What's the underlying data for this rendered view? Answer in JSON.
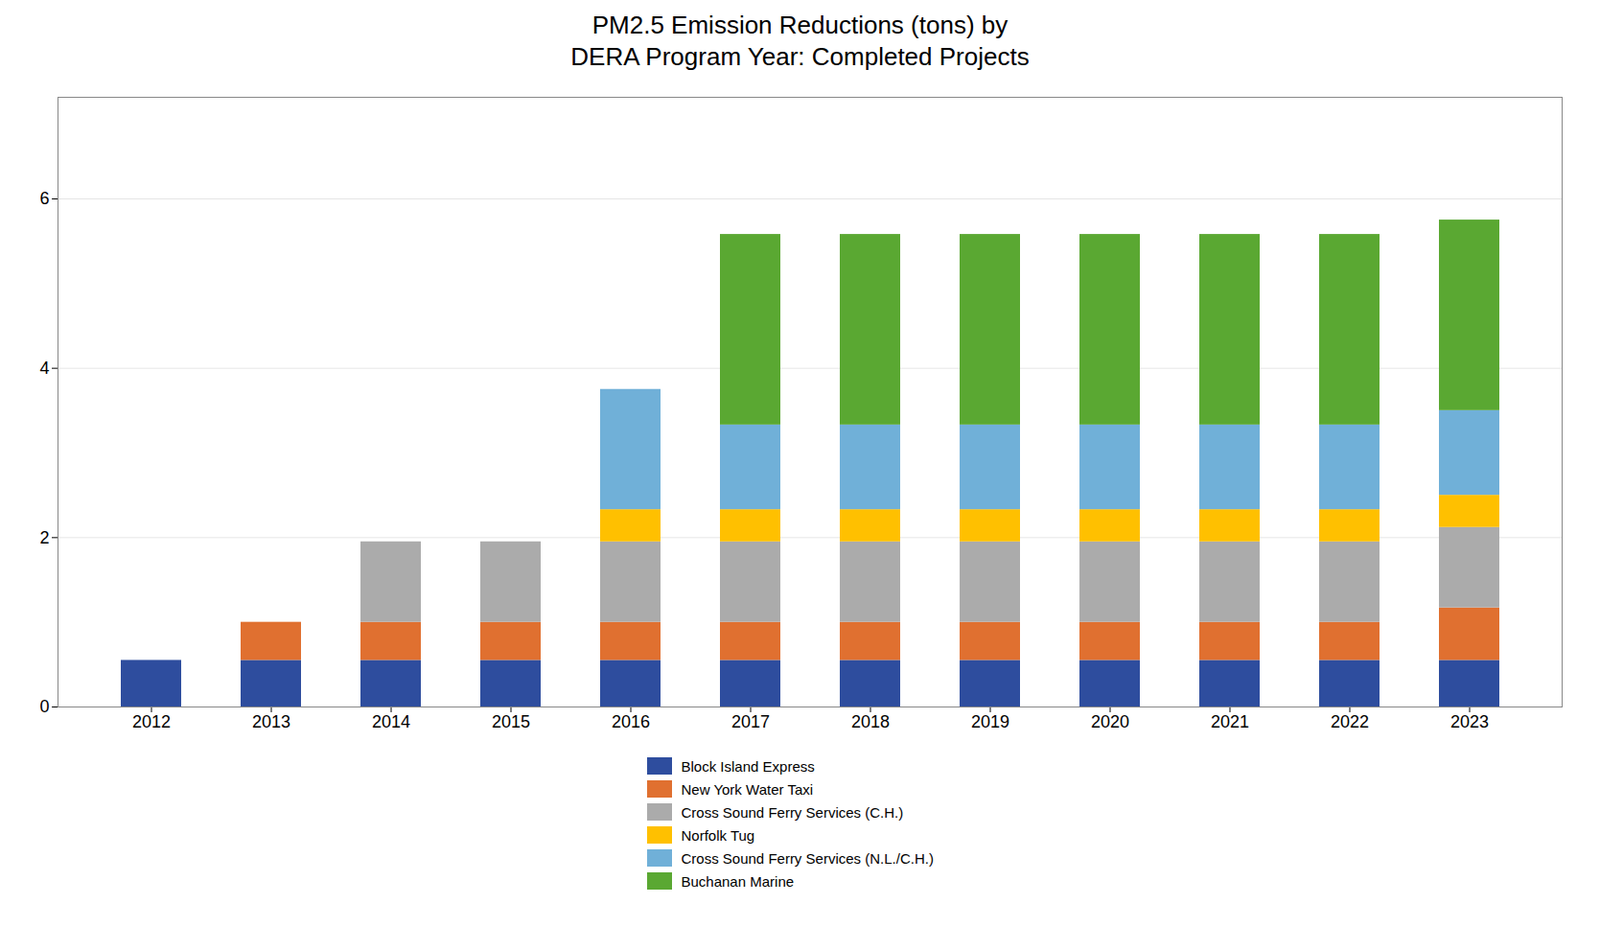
{
  "chart_data": {
    "type": "bar",
    "stacked": true,
    "title": "PM2.5 Emission Reductions (tons) by\nDERA Program Year: Completed Projects",
    "categories": [
      2012,
      2013,
      2014,
      2015,
      2016,
      2017,
      2018,
      2019,
      2020,
      2021,
      2022,
      2023
    ],
    "series": [
      {
        "name": "Block Island Express",
        "color": "#2E4D9E",
        "values": [
          0.55,
          0.55,
          0.55,
          0.55,
          0.55,
          0.55,
          0.55,
          0.55,
          0.55,
          0.55,
          0.55,
          0.55
        ]
      },
      {
        "name": "New York Water Taxi",
        "color": "#E07030",
        "values": [
          0.0,
          0.45,
          0.45,
          0.45,
          0.45,
          0.45,
          0.45,
          0.45,
          0.45,
          0.45,
          0.45,
          0.62
        ]
      },
      {
        "name": "Cross Sound Ferry Services (C.H.)",
        "color": "#ABABAB",
        "values": [
          0.0,
          0.0,
          0.95,
          0.95,
          0.95,
          0.95,
          0.95,
          0.95,
          0.95,
          0.95,
          0.95,
          0.95
        ]
      },
      {
        "name": "Norfolk Tug",
        "color": "#FFC000",
        "values": [
          0.0,
          0.0,
          0.0,
          0.0,
          0.38,
          0.38,
          0.38,
          0.38,
          0.38,
          0.38,
          0.38,
          0.38
        ]
      },
      {
        "name": "Cross Sound Ferry Services (N.L./C.H.)",
        "color": "#70B0D8",
        "values": [
          0.0,
          0.0,
          0.0,
          0.0,
          1.42,
          1.0,
          1.0,
          1.0,
          1.0,
          1.0,
          1.0,
          1.0
        ]
      },
      {
        "name": "Buchanan Marine",
        "color": "#5AA832",
        "values": [
          0.0,
          0.0,
          0.0,
          0.0,
          0.0,
          2.25,
          2.25,
          2.25,
          2.25,
          2.25,
          2.25,
          2.25
        ]
      }
    ],
    "ylim": [
      0,
      7.2
    ],
    "yticks": [
      0,
      2,
      4,
      6
    ],
    "grid": true,
    "legend": "bottom"
  }
}
